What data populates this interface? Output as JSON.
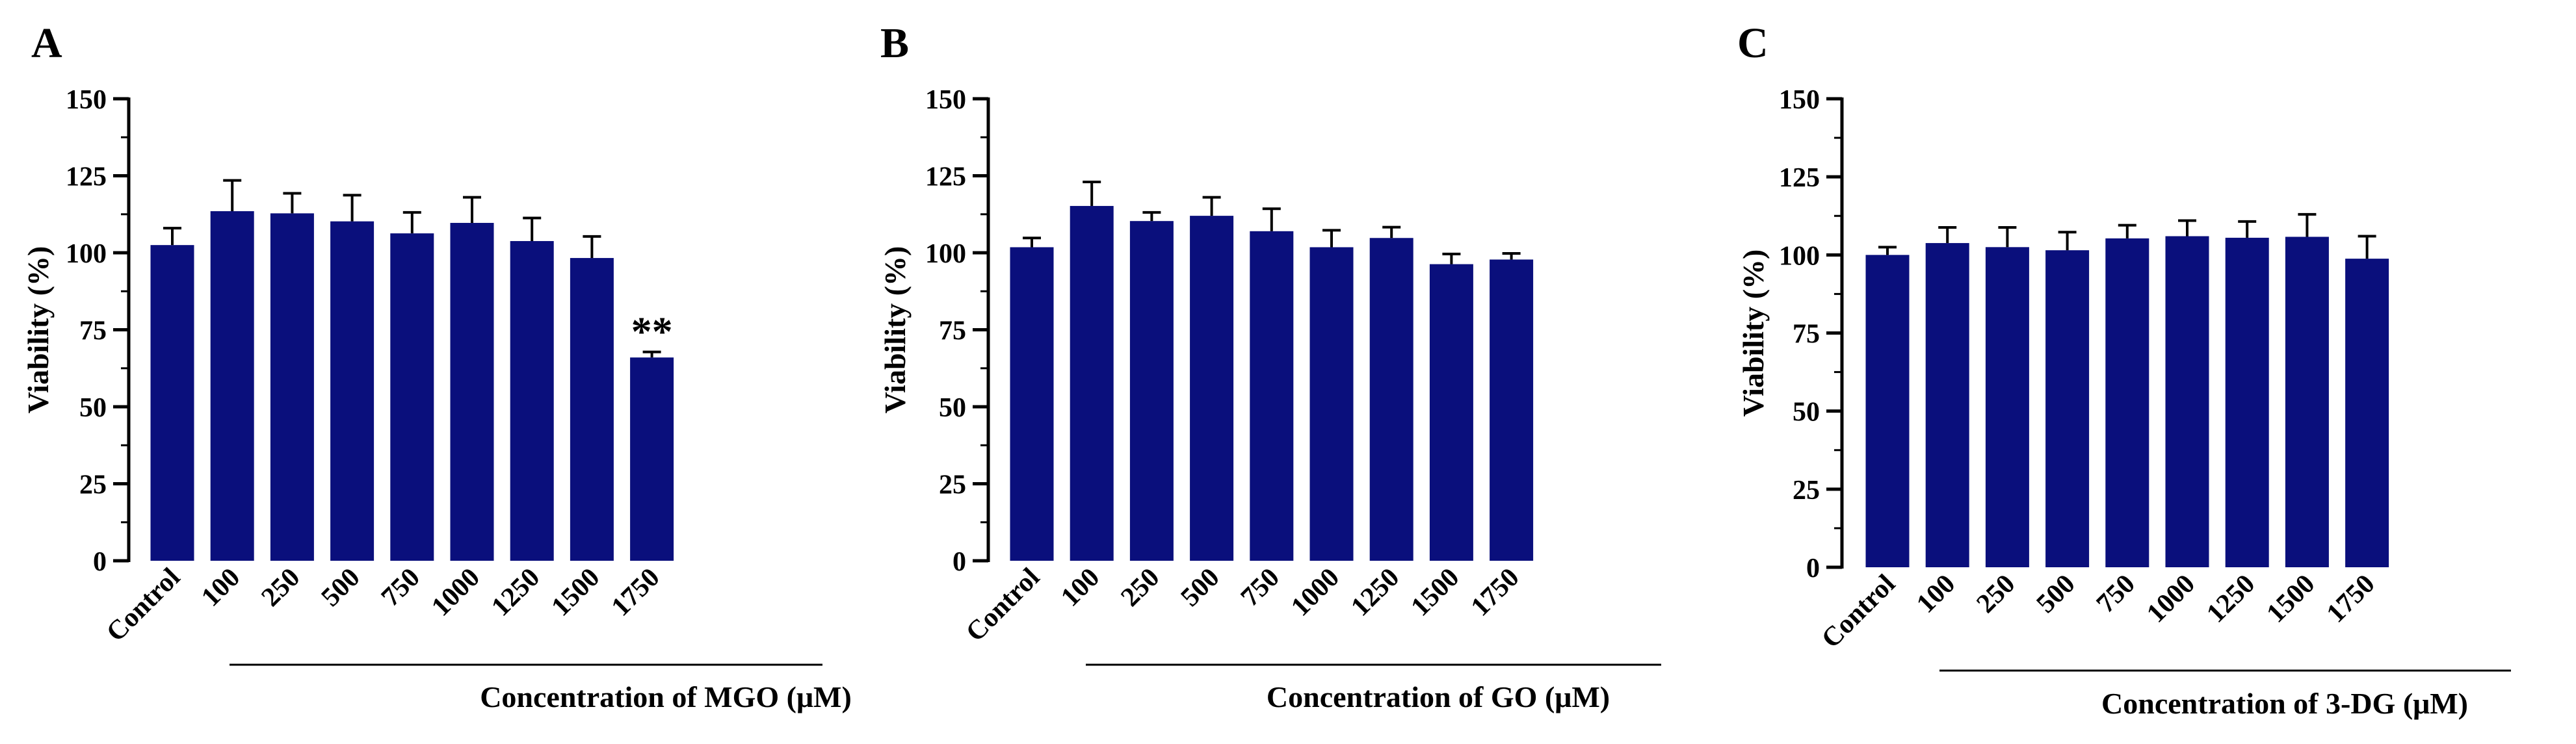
{
  "bar_color": "#0a0f7c",
  "chart_data": [
    {
      "panel": "A",
      "type": "bar",
      "title": "",
      "xlabel": "Concentration of MGO (μM)",
      "ylabel": "Viability  (%)",
      "ylim": [
        0,
        150
      ],
      "yticks": [
        "0",
        "25",
        "50",
        "75",
        "100",
        "125",
        "150"
      ],
      "ytick_values": [
        0,
        25,
        50,
        75,
        100,
        125,
        150
      ],
      "categories": [
        "Control",
        "100",
        "250",
        "500",
        "750",
        "1000",
        "1250",
        "1500",
        "1750"
      ],
      "values": [
        102.5,
        113.5,
        112.8,
        110.2,
        106.3,
        109.7,
        103.8,
        98.3,
        66.0
      ],
      "errors": [
        5.5,
        10.0,
        6.5,
        8.5,
        6.8,
        8.3,
        7.5,
        7.0,
        1.8
      ],
      "annotations": [
        {
          "category": "1750",
          "text": "**"
        }
      ]
    },
    {
      "panel": "B",
      "type": "bar",
      "title": "",
      "xlabel": "Concentration of GO (μM)",
      "ylabel": "Viability  (%)",
      "ylim": [
        0,
        150
      ],
      "yticks": [
        "0",
        "25",
        "50",
        "75",
        "100",
        "125",
        "150"
      ],
      "ytick_values": [
        0,
        25,
        50,
        75,
        100,
        125,
        150
      ],
      "categories": [
        "Control",
        "100",
        "250",
        "500",
        "750",
        "1000",
        "1250",
        "1500",
        "1750"
      ],
      "values": [
        101.8,
        115.2,
        110.3,
        112.0,
        107.0,
        101.8,
        104.8,
        96.3,
        97.8
      ],
      "errors": [
        3.0,
        7.8,
        2.8,
        6.0,
        7.3,
        5.5,
        3.5,
        3.3,
        2.0
      ],
      "annotations": []
    },
    {
      "panel": "C",
      "type": "bar",
      "title": "",
      "xlabel": "Concentration of 3-DG (μM)",
      "ylabel": "Viability  (%)",
      "ylim": [
        0,
        150
      ],
      "yticks": [
        "0",
        "25",
        "50",
        "75",
        "100",
        "125",
        "150"
      ],
      "ytick_values": [
        0,
        25,
        50,
        75,
        100,
        125,
        150
      ],
      "categories": [
        "Control",
        "100",
        "250",
        "500",
        "750",
        "1000",
        "1250",
        "1500",
        "1750"
      ],
      "values": [
        100.0,
        103.8,
        102.5,
        101.5,
        105.3,
        106.0,
        105.5,
        105.8,
        98.8
      ],
      "errors": [
        2.5,
        5.0,
        6.3,
        5.8,
        4.2,
        5.0,
        5.2,
        7.2,
        7.2
      ],
      "annotations": []
    }
  ]
}
